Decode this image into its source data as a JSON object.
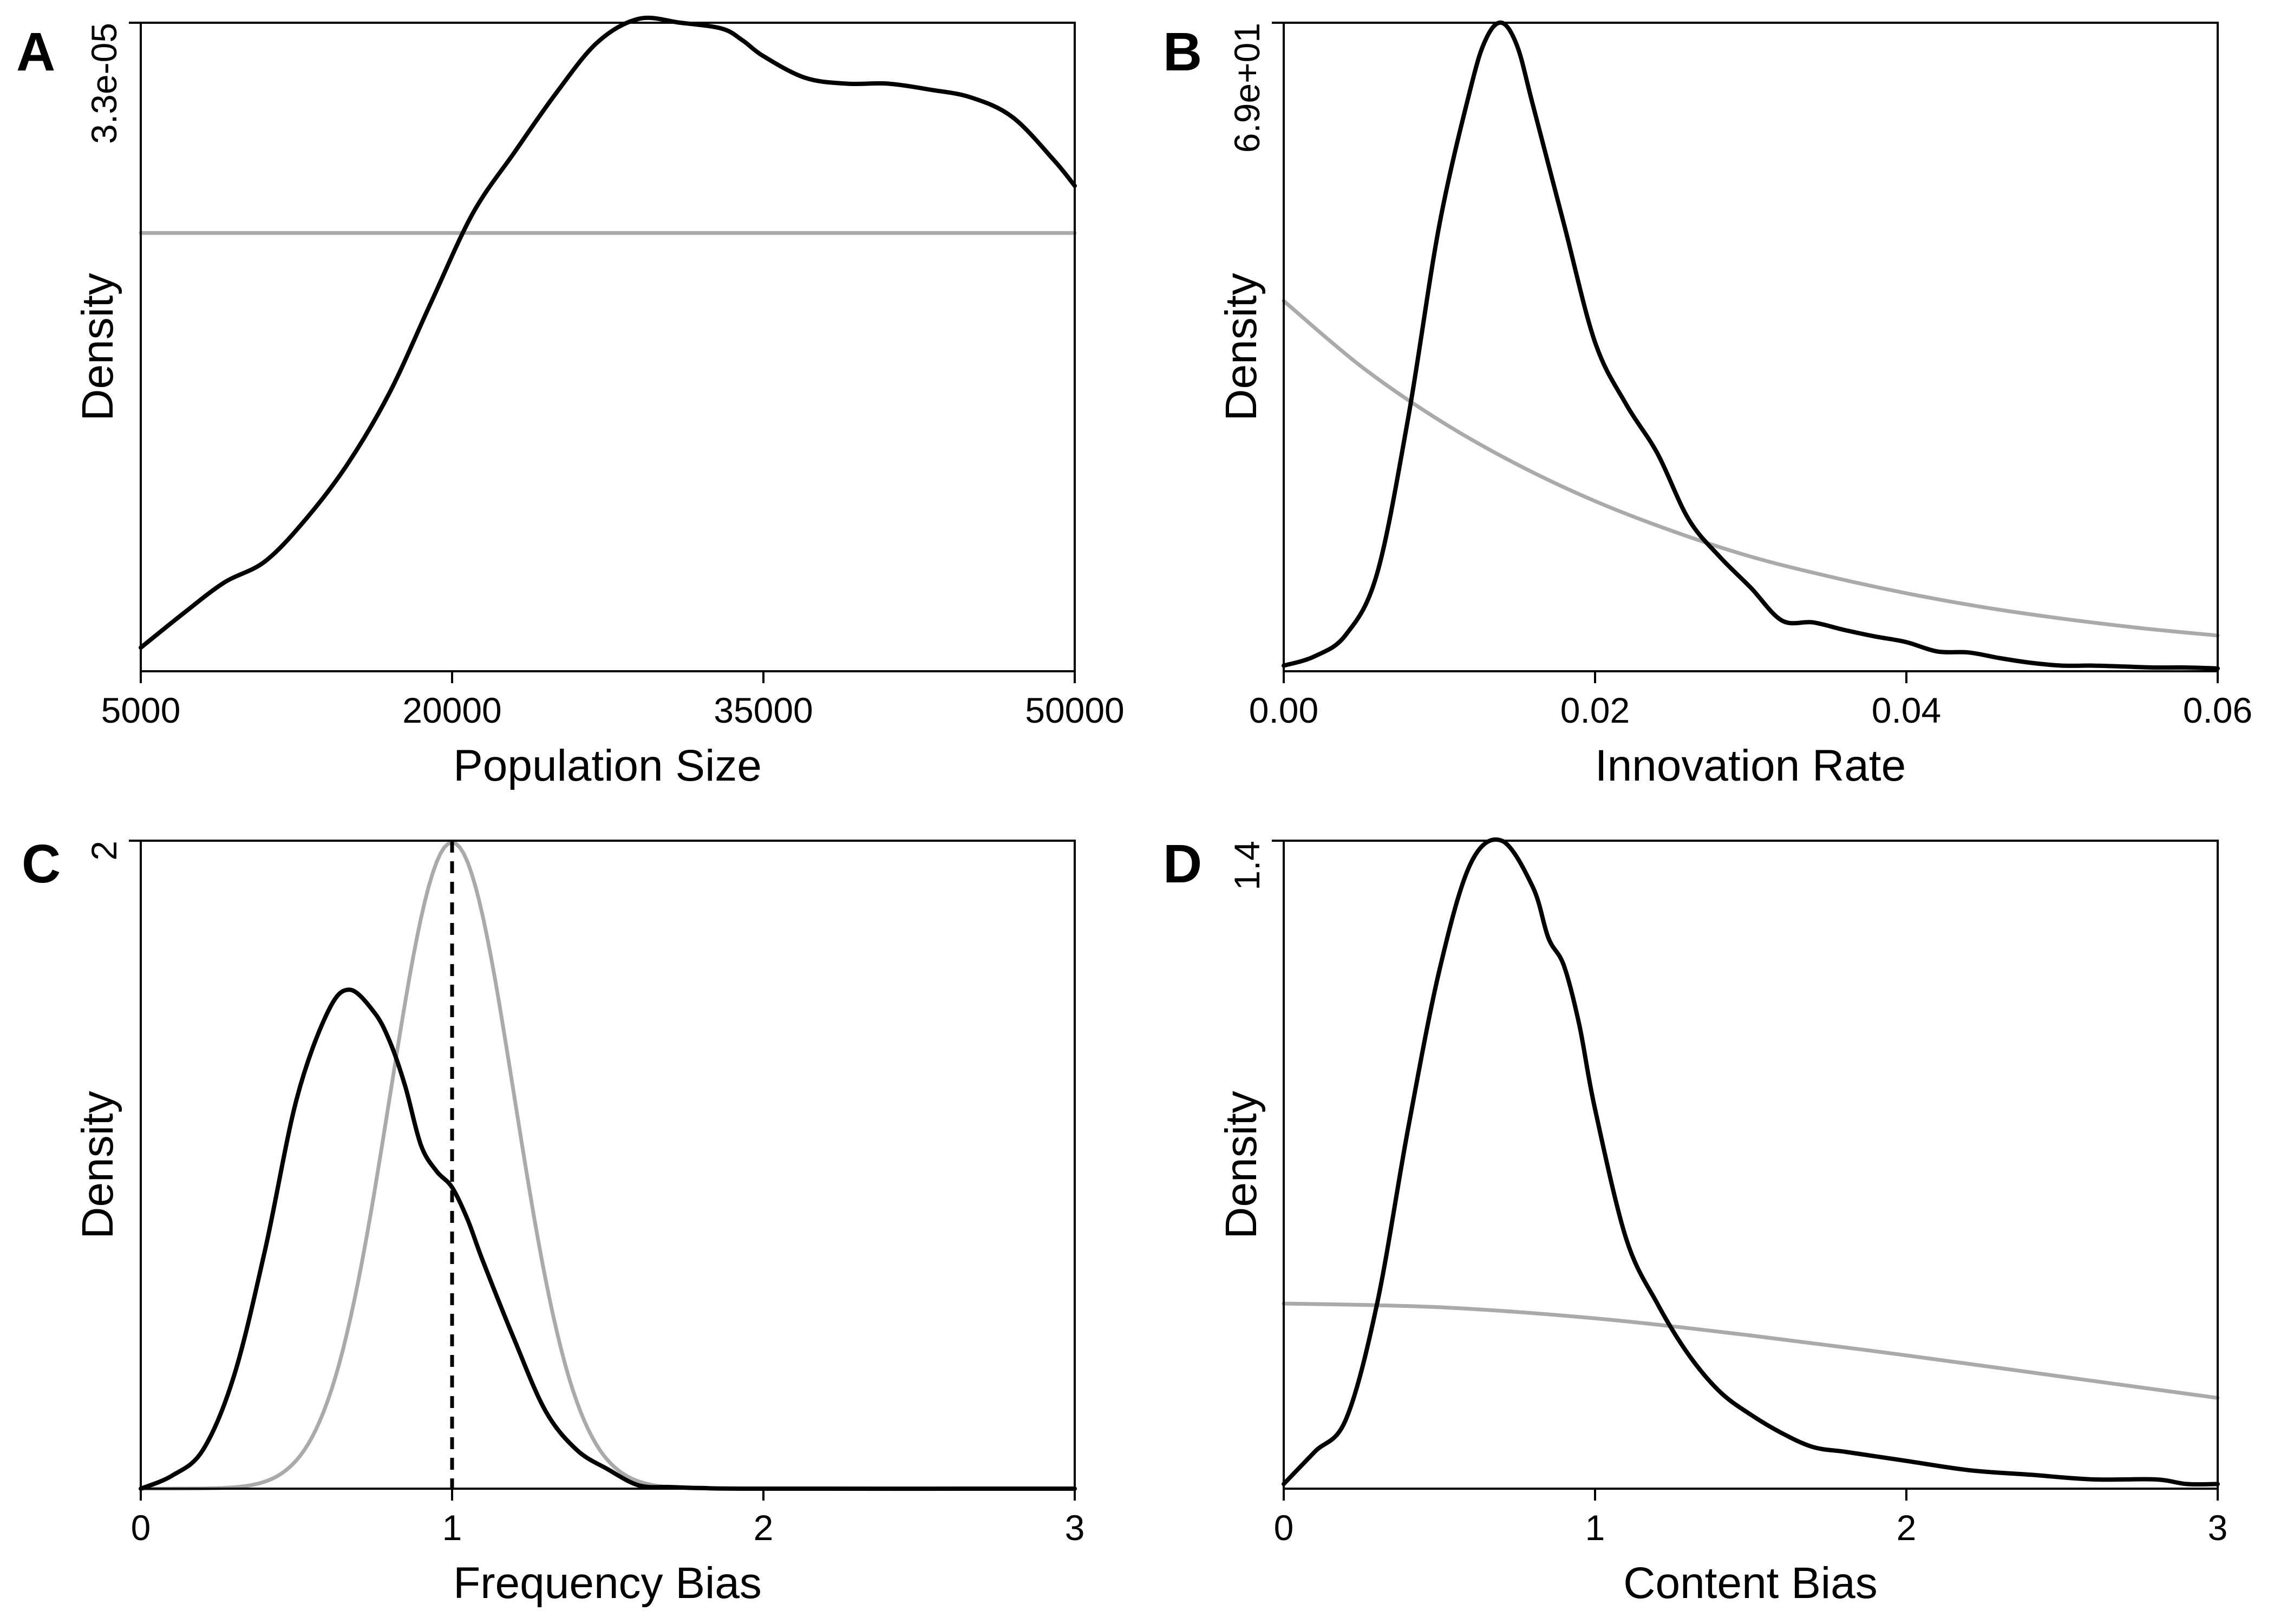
{
  "chart_data": [
    {
      "panel": "A",
      "type": "line",
      "xlabel": "Population Size",
      "ylabel": "Density",
      "xlim": [
        5000,
        50000
      ],
      "ylim": [
        0,
        3.3e-05
      ],
      "x_ticks": [
        5000,
        20000,
        35000,
        50000
      ],
      "x_tick_labels": [
        "5000",
        "20000",
        "35000",
        "50000"
      ],
      "y_ticks": [
        3.3e-05
      ],
      "y_tick_labels": [
        "3.3e-05"
      ],
      "series": [
        {
          "role": "posterior",
          "color": "#000000",
          "x": [
            5000,
            7000,
            9000,
            11000,
            13000,
            15000,
            17000,
            19000,
            21000,
            23000,
            25000,
            27000,
            29000,
            31000,
            33000,
            34000,
            35000,
            37000,
            39000,
            41000,
            43000,
            45000,
            47000,
            49000,
            50000
          ],
          "y": [
            1.2e-06,
            2.9e-06,
            4.5e-06,
            5.6e-06,
            7.8e-06,
            1.06e-05,
            1.42e-05,
            1.88e-05,
            2.33e-05,
            2.64e-05,
            2.94e-05,
            3.2e-05,
            3.32e-05,
            3.3e-05,
            3.27e-05,
            3.21e-05,
            3.13e-05,
            3.02e-05,
            2.99e-05,
            2.99e-05,
            2.96e-05,
            2.92e-05,
            2.82e-05,
            2.6e-05,
            2.47e-05
          ]
        },
        {
          "role": "prior",
          "color": "#aaaaaa",
          "x": [
            5000,
            50000
          ],
          "y": [
            2.23e-05,
            2.23e-05
          ]
        }
      ]
    },
    {
      "panel": "B",
      "type": "line",
      "xlabel": "Innovation Rate",
      "ylabel": "Density",
      "xlim": [
        0,
        0.06
      ],
      "ylim": [
        0,
        69
      ],
      "x_ticks": [
        0,
        0.02,
        0.04,
        0.06
      ],
      "x_tick_labels": [
        "0.00",
        "0.02",
        "0.04",
        "0.06"
      ],
      "y_ticks": [
        69
      ],
      "y_tick_labels": [
        "6.9e+01"
      ],
      "series": [
        {
          "role": "posterior",
          "color": "#000000",
          "x": [
            0,
            0.002,
            0.004,
            0.006,
            0.008,
            0.01,
            0.012,
            0.013,
            0.014,
            0.015,
            0.016,
            0.018,
            0.02,
            0.022,
            0.024,
            0.026,
            0.028,
            0.03,
            0.032,
            0.034,
            0.036,
            0.038,
            0.04,
            0.042,
            0.044,
            0.046,
            0.048,
            0.05,
            0.052,
            0.054,
            0.056,
            0.058,
            0.06
          ],
          "y": [
            0.6,
            1.6,
            3.9,
            10.4,
            27,
            47.5,
            62,
            67.3,
            69,
            66.5,
            60.3,
            47.6,
            35,
            28.4,
            23.2,
            16.2,
            12.2,
            8.9,
            5.4,
            5.2,
            4.4,
            3.7,
            3.1,
            2.1,
            2.0,
            1.4,
            0.9,
            0.6,
            0.6,
            0.5,
            0.4,
            0.4,
            0.3
          ]
        },
        {
          "role": "prior",
          "color": "#aaaaaa",
          "x": [
            0,
            0.005,
            0.01,
            0.015,
            0.02,
            0.025,
            0.03,
            0.035,
            0.04,
            0.045,
            0.05,
            0.055,
            0.06
          ],
          "y": [
            39.4,
            32.4,
            26.7,
            22,
            18.1,
            14.9,
            12.2,
            10.1,
            8.3,
            6.8,
            5.6,
            4.6,
            3.8
          ]
        }
      ]
    },
    {
      "panel": "C",
      "type": "line",
      "xlabel": "Frequency Bias",
      "ylabel": "Density",
      "xlim": [
        0,
        3
      ],
      "ylim": [
        0,
        2
      ],
      "x_ticks": [
        0,
        1,
        2,
        3
      ],
      "x_tick_labels": [
        "0",
        "1",
        "2",
        "3"
      ],
      "y_ticks": [
        2
      ],
      "y_tick_labels": [
        "2"
      ],
      "reference_x": 1,
      "series": [
        {
          "role": "posterior",
          "color": "#000000",
          "x": [
            0,
            0.1,
            0.2,
            0.3,
            0.4,
            0.5,
            0.6,
            0.67,
            0.75,
            0.8,
            0.85,
            0.9,
            0.95,
            1.0,
            1.05,
            1.1,
            1.2,
            1.3,
            1.4,
            1.5,
            1.6,
            1.7,
            1.8,
            2.0,
            3.0
          ],
          "y": [
            0,
            0.04,
            0.12,
            0.35,
            0.74,
            1.2,
            1.47,
            1.54,
            1.47,
            1.38,
            1.24,
            1.06,
            0.98,
            0.93,
            0.83,
            0.7,
            0.46,
            0.24,
            0.12,
            0.06,
            0.01,
            0.005,
            0.002,
            0,
            0
          ]
        },
        {
          "role": "prior",
          "color": "#aaaaaa",
          "mean": 1,
          "sd": 0.2,
          "x_range": [
            0,
            3
          ]
        }
      ]
    },
    {
      "panel": "D",
      "type": "line",
      "xlabel": "Content Bias",
      "ylabel": "Density",
      "xlim": [
        0,
        3
      ],
      "ylim": [
        0,
        1.4
      ],
      "x_ticks": [
        0,
        1,
        2,
        3
      ],
      "x_tick_labels": [
        "0",
        "1",
        "2",
        "3"
      ],
      "y_ticks": [
        1.4
      ],
      "y_tick_labels": [
        "1.4"
      ],
      "series": [
        {
          "role": "posterior",
          "color": "#000000",
          "x": [
            0,
            0.1,
            0.2,
            0.3,
            0.4,
            0.5,
            0.6,
            0.7,
            0.8,
            0.85,
            0.9,
            0.95,
            1.0,
            1.1,
            1.2,
            1.3,
            1.4,
            1.5,
            1.6,
            1.7,
            1.8,
            1.9,
            2.0,
            2.2,
            2.4,
            2.6,
            2.8,
            2.9,
            3.0
          ],
          "y": [
            0.01,
            0.08,
            0.15,
            0.4,
            0.78,
            1.12,
            1.35,
            1.4,
            1.3,
            1.19,
            1.13,
            1.0,
            0.82,
            0.54,
            0.4,
            0.29,
            0.21,
            0.16,
            0.12,
            0.09,
            0.08,
            0.07,
            0.06,
            0.04,
            0.03,
            0.02,
            0.02,
            0.01,
            0.01
          ]
        },
        {
          "role": "prior",
          "color": "#aaaaaa",
          "x": [
            0,
            0.5,
            1,
            1.5,
            2,
            2.5,
            3
          ],
          "y": [
            0.4,
            0.392,
            0.368,
            0.331,
            0.288,
            0.242,
            0.196
          ]
        }
      ]
    }
  ]
}
